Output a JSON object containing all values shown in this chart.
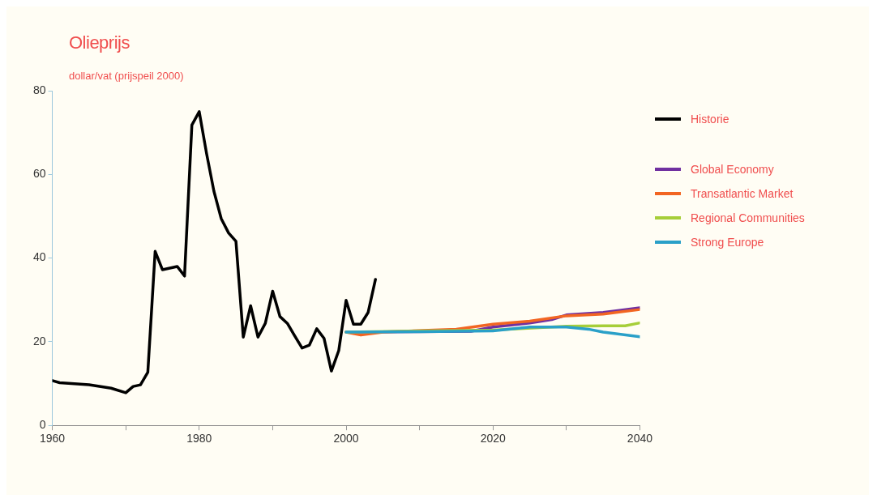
{
  "chart_data": {
    "type": "line",
    "title": "Olieprijs",
    "subtitle": "dollar/vat (prijspeil 2000)",
    "xlim": [
      1960,
      2040
    ],
    "xticks": [
      1960,
      {
        "value": 1970,
        "label": null
      },
      1980,
      {
        "value": 1990,
        "label": null
      },
      2000,
      {
        "value": 2010,
        "label": null
      },
      2020,
      {
        "value": 2030,
        "label": null
      },
      2040
    ],
    "ylim": [
      0,
      80
    ],
    "yticks": [
      0,
      20,
      40,
      60,
      80
    ],
    "grid": false,
    "legend": "right",
    "marker": "none",
    "line_style": "solid",
    "series": [
      {
        "name": "Historie",
        "color": "#000000",
        "x": [
          1960,
          1961,
          1965,
          1968,
          1970,
          1971,
          1972,
          1973,
          1974,
          1975,
          1977,
          1978,
          1979,
          1980,
          1981,
          1982,
          1983,
          1984,
          1985,
          1986,
          1987,
          1988,
          1989,
          1990,
          1991,
          1992,
          1993,
          1994,
          1995,
          1996,
          1997,
          1998,
          1999,
          2000,
          2001,
          2002,
          2003,
          2004
        ],
        "values": [
          10.7,
          10.2,
          9.7,
          8.9,
          7.8,
          9.3,
          9.7,
          12.7,
          41.6,
          37.2,
          38,
          35.7,
          71.8,
          75,
          65,
          56,
          49.4,
          46,
          44,
          21.1,
          28.6,
          21.1,
          24.4,
          32.1,
          26,
          24.4,
          21.4,
          18.5,
          19.2,
          23.1,
          20.8,
          13,
          17.9,
          29.9,
          24.2,
          24.2,
          27,
          34.9
        ]
      },
      {
        "name": "Global Economy",
        "color": "#7030a0",
        "x": [
          2000,
          2017,
          2020,
          2025,
          2028,
          2030,
          2035,
          2040
        ],
        "values": [
          22.3,
          22.5,
          23.5,
          24.5,
          25.3,
          26.4,
          27,
          28.1
        ]
      },
      {
        "name": "Transatlantic Market",
        "color": "#f26522",
        "x": [
          2000,
          2002,
          2005,
          2015,
          2020,
          2025,
          2030,
          2035,
          2040
        ],
        "values": [
          22.3,
          21.6,
          22.3,
          23,
          24.2,
          24.9,
          26.2,
          26.6,
          27.7
        ]
      },
      {
        "name": "Regional Communities",
        "color": "#a6ce39",
        "x": [
          2000,
          2020,
          2030,
          2035,
          2038,
          2040
        ],
        "values": [
          22.3,
          22.8,
          23.7,
          23.8,
          23.8,
          24.5
        ]
      },
      {
        "name": "Strong Europe",
        "color": "#2aa0c8",
        "x": [
          2000,
          2010,
          2020,
          2025,
          2030,
          2033,
          2035,
          2040
        ],
        "values": [
          22.3,
          22.4,
          22.6,
          23.5,
          23.5,
          23,
          22.3,
          21.2
        ]
      }
    ]
  }
}
